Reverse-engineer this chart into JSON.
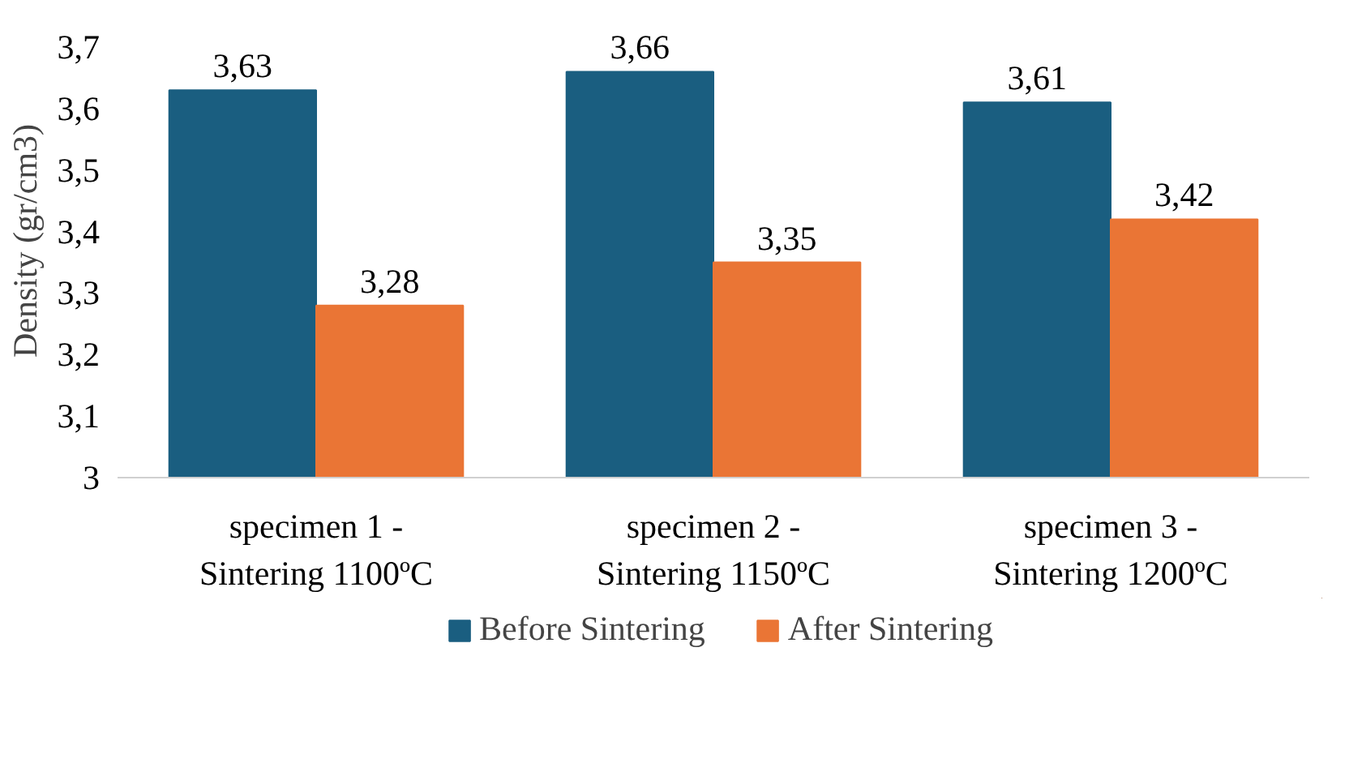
{
  "chart_data": {
    "type": "bar",
    "ylabel": "Density (gr/cm3)",
    "categories": [
      "specimen 1 -\nSintering 1100ºC",
      "specimen 2 -\nSintering 1150ºC",
      "specimen 3 -\nSintering 1200ºC"
    ],
    "series": [
      {
        "name": "Before Sintering",
        "color": "#1a5e80",
        "values": [
          3.63,
          3.66,
          3.61
        ],
        "value_labels": [
          "3,63",
          "3,66",
          "3,61"
        ]
      },
      {
        "name": "After Sintering",
        "color": "#ea7535",
        "values": [
          3.28,
          3.35,
          3.42
        ],
        "value_labels": [
          "3,28",
          "3,35",
          "3,42"
        ]
      }
    ],
    "ylim": [
      3,
      3.7
    ],
    "yticks": [
      {
        "value": 3,
        "label": "3"
      },
      {
        "value": 3.1,
        "label": "3,1"
      },
      {
        "value": 3.2,
        "label": "3,2"
      },
      {
        "value": 3.3,
        "label": "3,3"
      },
      {
        "value": 3.4,
        "label": "3,4"
      },
      {
        "value": 3.5,
        "label": "3,5"
      },
      {
        "value": 3.6,
        "label": "3,6"
      },
      {
        "value": 3.7,
        "label": "3,7"
      }
    ],
    "grid": false,
    "legend": "bottom"
  }
}
